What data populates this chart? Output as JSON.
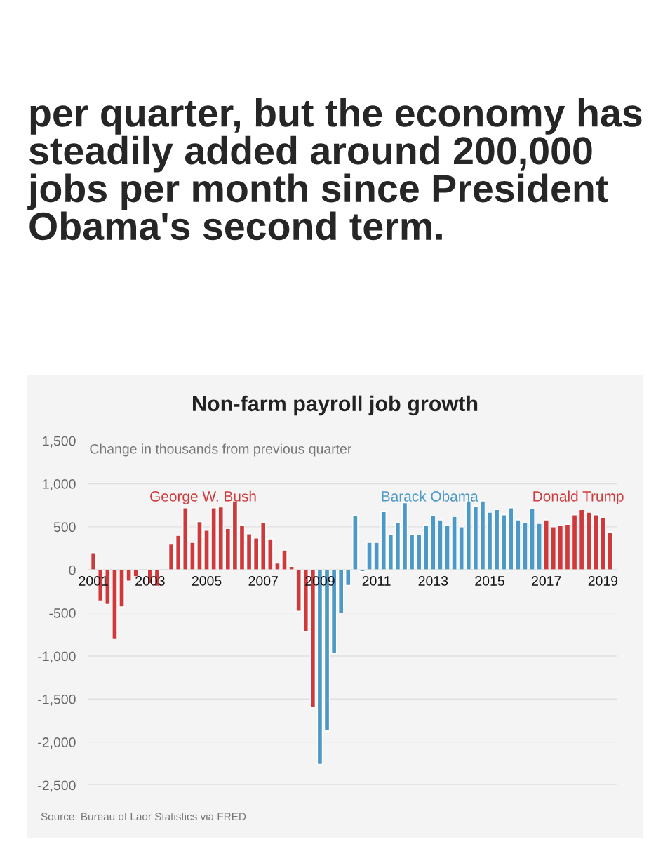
{
  "chart_data": {
    "type": "bar",
    "title": "Non-farm payroll job growth",
    "subtitle": "Change in thousands from previous quarter",
    "annotations": [
      "per quarter, but the economy has steadily added around 200,000 jobs per month since President Obama's second term.",
      "Source: Bureau of Laor Statistics via FRED"
    ],
    "series": [
      {
        "name": "George W. Bush",
        "color": "#d0393b",
        "x": [
          2001.0,
          2001.25,
          2001.5,
          2001.75,
          2002.0,
          2002.25,
          2002.5,
          2002.75,
          2003.0,
          2003.25,
          2003.5,
          2003.75,
          2004.0,
          2004.25,
          2004.5,
          2004.75,
          2005.0,
          2005.25,
          2005.5,
          2005.75,
          2006.0,
          2006.25,
          2006.5,
          2006.75,
          2007.0,
          2007.25,
          2007.5,
          2007.75,
          2008.0,
          2008.25,
          2008.5,
          2008.75
        ],
        "values": [
          200,
          -360,
          -400,
          -800,
          -430,
          -130,
          -80,
          null,
          -160,
          -190,
          null,
          300,
          400,
          720,
          320,
          560,
          460,
          720,
          730,
          480,
          800,
          520,
          420,
          370,
          550,
          360,
          80,
          230,
          40,
          -480,
          -720,
          -1600
        ]
      },
      {
        "name": "Barack Obama",
        "color": "#4c98c6",
        "x": [
          2009.0,
          2009.25,
          2009.5,
          2009.75,
          2010.0,
          2010.25,
          2010.5,
          2010.75,
          2011.0,
          2011.25,
          2011.5,
          2011.75,
          2012.0,
          2012.25,
          2012.5,
          2012.75,
          2013.0,
          2013.25,
          2013.5,
          2013.75,
          2014.0,
          2014.25,
          2014.5,
          2014.75,
          2015.0,
          2015.25,
          2015.5,
          2015.75,
          2016.0,
          2016.25,
          2016.5,
          2016.75
        ],
        "values": [
          -2260,
          -1870,
          -970,
          -500,
          -180,
          630,
          -20,
          320,
          320,
          680,
          410,
          550,
          780,
          410,
          410,
          520,
          630,
          580,
          520,
          620,
          500,
          800,
          740,
          800,
          670,
          700,
          640,
          720,
          580,
          550,
          710,
          540
        ]
      },
      {
        "name": "Donald Trump",
        "color": "#d0393b",
        "x": [
          2017.0,
          2017.25,
          2017.5,
          2017.75,
          2018.0,
          2018.25,
          2018.5,
          2018.75,
          2019.0,
          2019.25
        ],
        "values": [
          580,
          500,
          520,
          530,
          640,
          700,
          670,
          640,
          610,
          440
        ]
      }
    ],
    "xlim": [
      2000.8,
      2019.5
    ],
    "xticks": [
      2001,
      2003,
      2005,
      2007,
      2009,
      2011,
      2013,
      2015,
      2017,
      2019
    ],
    "ylim": [
      -2500,
      1500
    ],
    "yticks": [
      {
        "value": -2500,
        "label": "-2,500"
      },
      {
        "value": -2000,
        "label": "-2,000"
      },
      {
        "value": -1500,
        "label": "-1,500"
      },
      {
        "value": -1000,
        "label": "-1,000"
      },
      {
        "value": -500,
        "label": "-500"
      },
      0,
      500,
      {
        "value": 1000,
        "label": "1,000"
      },
      {
        "value": 1500,
        "label": "1,500"
      }
    ],
    "grid": "y",
    "legend": false
  }
}
